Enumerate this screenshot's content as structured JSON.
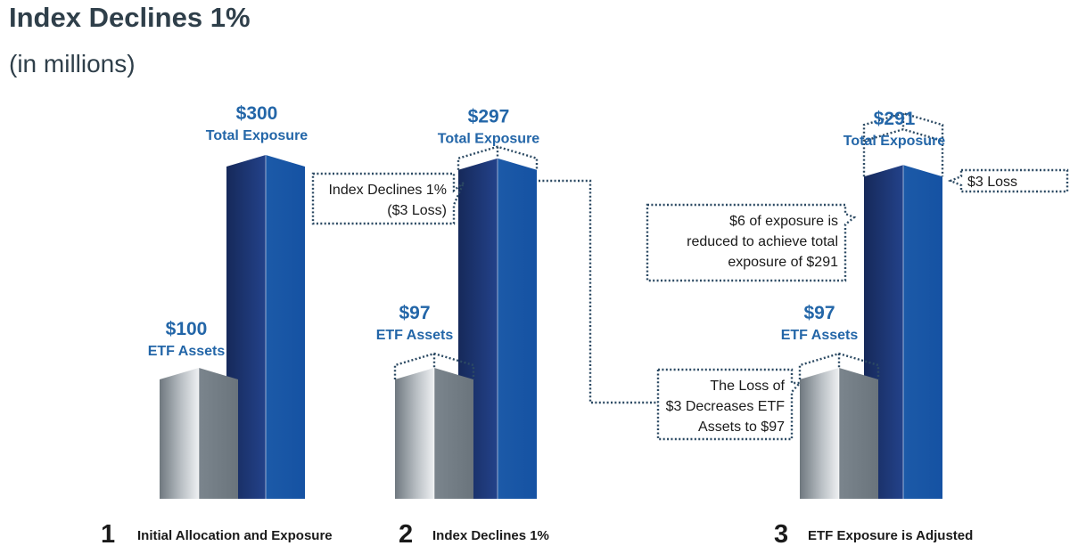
{
  "title": "Index Declines 1%",
  "subtitle": "(in millions)",
  "chart_data": {
    "type": "bar",
    "categories": [
      "Initial Allocation and Exposure",
      "Index Declines 1%",
      "ETF Exposure is Adjusted"
    ],
    "step_numbers": [
      "1",
      "2",
      "3"
    ],
    "series": [
      {
        "name": "ETF Assets",
        "values": [
          100,
          97,
          97
        ],
        "labels": [
          "$100",
          "$97",
          "$97"
        ]
      },
      {
        "name": "Total Exposure",
        "values": [
          300,
          297,
          291
        ],
        "labels": [
          "$300",
          "$297",
          "$291"
        ]
      }
    ],
    "annotations": {
      "step2_callout": [
        "Index Declines 1%",
        "($3 Loss)"
      ],
      "step3_loss_callout": [
        "The Loss of",
        "$3 Decreases ETF",
        "Assets to $97"
      ],
      "step3_reduce_callout": [
        "$6 of exposure is",
        "reduced to achieve total",
        "exposure of $291"
      ],
      "step3_small_callout": "$3 Loss"
    },
    "colors": {
      "etf_light": "#e6e9ec",
      "etf_dark": "#6a747c",
      "exposure_light": "#2a64b0",
      "exposure_dark": "#16295a",
      "label": "#2366a8"
    },
    "ylim": [
      0,
      300
    ]
  }
}
